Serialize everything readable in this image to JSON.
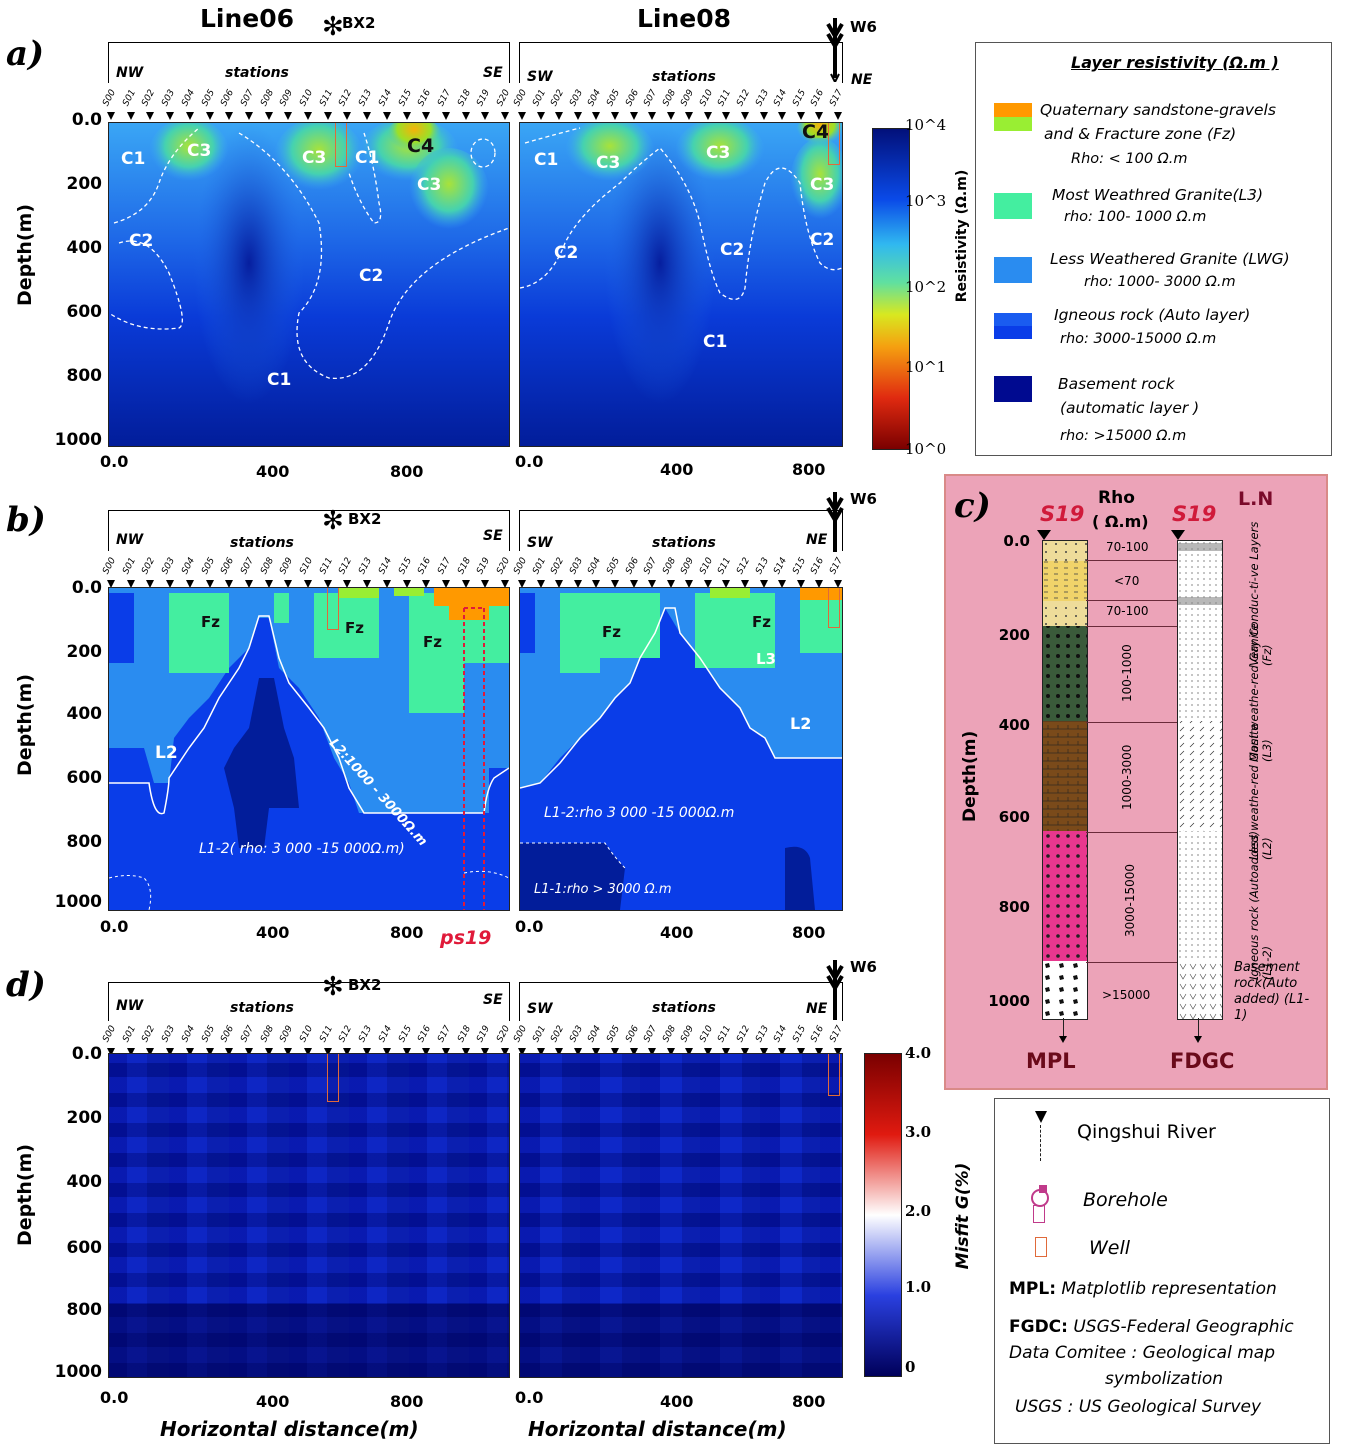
{
  "titles": {
    "line06": "Line06",
    "line08": "Line08"
  },
  "panel_labels": {
    "a": "a)",
    "b": "b)",
    "c": "c)",
    "d": "d)"
  },
  "markers": {
    "bx2": "BX2",
    "w6": "W6"
  },
  "stations_label": "stations",
  "directions": {
    "line06_left": "NW",
    "line06_right": "SE",
    "line08_left": "SW",
    "line08_right": "NE"
  },
  "stations_line06": [
    "S00",
    "S01",
    "S02",
    "S03",
    "S04",
    "S05",
    "S06",
    "S07",
    "S08",
    "S09",
    "S10",
    "S11",
    "S12",
    "S13",
    "S14",
    "S15",
    "S16",
    "S17",
    "S18",
    "S19",
    "S20"
  ],
  "stations_line08": [
    "S00",
    "S01",
    "S02",
    "S03",
    "S04",
    "S05",
    "S06",
    "S07",
    "S08",
    "S09",
    "S10",
    "S11",
    "S12",
    "S13",
    "S14",
    "S15",
    "S16",
    "S17"
  ],
  "depth_axis": {
    "label": "Depth(m)",
    "ticks": [
      "0.0",
      "200",
      "400",
      "600",
      "800",
      "1000"
    ]
  },
  "x_axis": {
    "label": "Horizontal distance(m)",
    "ticks": [
      "0.0",
      "400",
      "800"
    ]
  },
  "panel_a": {
    "zones_line06": [
      "C1",
      "C3",
      "C3",
      "C1",
      "C4",
      "C3",
      "C2",
      "C2",
      "C1"
    ],
    "zones_line08": [
      "C4",
      "C1",
      "C3",
      "C3",
      "C3",
      "C2",
      "C2",
      "C2",
      "C1"
    ],
    "colorbar": {
      "label": "Resistivity (Ω.m)",
      "ticks": [
        "10^4",
        "10^3",
        "10^2",
        "10^1",
        "10^0"
      ]
    }
  },
  "panel_b": {
    "line06": {
      "fz1": "Fz",
      "fz2": "Fz",
      "fz3": "Fz",
      "l2": "L2",
      "l2_contour": "L2:1000 - 3000Ω.m",
      "l12": "L1-2( rho: 3 000 -15 000Ω.m)",
      "ps19": "ps19"
    },
    "line08": {
      "fz1": "Fz",
      "fz2": "Fz",
      "l3": "L3",
      "l2": "L2",
      "l12": "L1-2:rho 3 000 -15 000Ω.m",
      "l11": "L1-1:rho > 3000 Ω.m"
    }
  },
  "panel_d": {
    "colorbar": {
      "label": "Misfit G(%)",
      "ticks": [
        "4.0",
        "3.0",
        "2.0",
        "1.0",
        "0"
      ]
    }
  },
  "legend_layers": {
    "title": "Layer resistivity (Ω.m )",
    "items": [
      {
        "name": "Quaternary sandstone-gravels",
        "name2": "and & Fracture zone (Fz)",
        "rho": "Rho: < 100 Ω.m",
        "color_top": "#ff9900",
        "color_bottom": "#99ee33"
      },
      {
        "name": "Most Weathred Granite(L3)",
        "rho": "rho: 100- 1000 Ω.m",
        "color": "#44eea0"
      },
      {
        "name": "Less Weathered Granite (LWG)",
        "rho": "rho: 1000- 3000 Ω.m",
        "color": "#2a8cf0"
      },
      {
        "name": "Igneous rock (Auto layer)",
        "rho": "rho: 3000-15000 Ω.m",
        "color": "#0a3de8"
      },
      {
        "name": "Basement rock",
        "name2": "(automatic layer )",
        "rho": "rho:  >15000 Ω.m",
        "color": "#000a90"
      }
    ]
  },
  "panel_c": {
    "s19_left": "S19",
    "s19_right": "S19",
    "rho_header": "Rho",
    "rho_unit": "( Ω.m)",
    "ln_header": "L.N",
    "depth_label": "Depth(m)",
    "depth_ticks": [
      "0.0",
      "200",
      "400",
      "600",
      "800",
      "1000"
    ],
    "rho_values": [
      "70-100",
      "<70",
      "70-100",
      "100-1000",
      "1000-3000",
      "3000-15000",
      ">15000"
    ],
    "layer_names": [
      "Very Conduc-ti-ve Layers (Fz)",
      "Most weathe-red Ganite (L3)",
      "Less weathe-red Ganite (L2)",
      "Igneous rock (Autoadded) (L1-2)",
      "Basement rock(Auto added) (L1-1)"
    ],
    "mpl": "MPL",
    "fdgc": "FDGC",
    "colors": {
      "bg": "#eca3b8",
      "sand": "#f0d36a",
      "tan": "#eedc9a",
      "green": "#3a5a3a",
      "brown": "#7a4a1a",
      "pink": "#e8378e",
      "basement": "#ffffff"
    }
  },
  "legend_symbols": {
    "river": "Qingshui River",
    "borehole": "Borehole",
    "well": "Well",
    "mpl_key": "MPL:",
    "mpl_text": "Matplotlib representation",
    "fgdc_key": "FGDC:",
    "fgdc_text": "USGS-Federal Geographic",
    "fgdc_text2": "Data Comitee : Geological map",
    "fgdc_text3": "symbolization",
    "usgs_text": "USGS : US Geological Survey"
  }
}
